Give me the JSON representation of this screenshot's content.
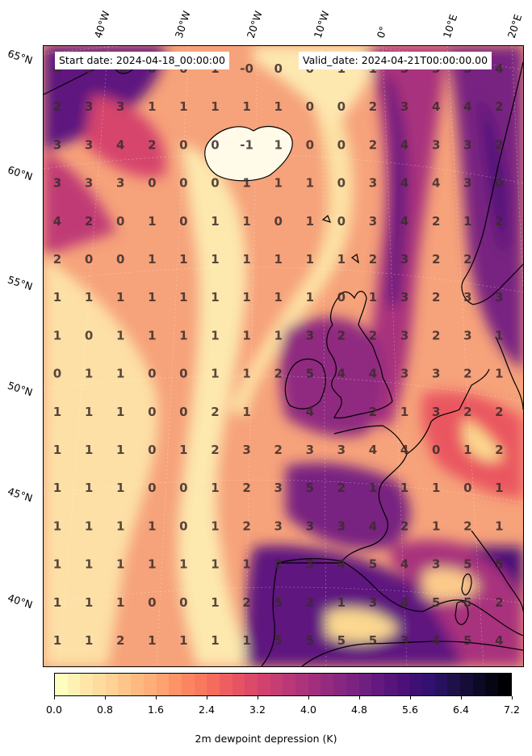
{
  "header": {
    "start_date": "Start date: 2024-04-18_00:00:00",
    "valid_date": "Valid_date: 2024-04-21T00:00:00.00"
  },
  "axes": {
    "lat_labels": [
      "65°N",
      "60°N",
      "55°N",
      "50°N",
      "45°N",
      "40°N"
    ],
    "lon_labels": [
      "40°W",
      "30°W",
      "20°W",
      "10°W",
      "0°",
      "10°E",
      "20°E"
    ]
  },
  "colorbar": {
    "label": "2m dewpoint depression (K)",
    "ticks": [
      "0.0",
      "0.8",
      "1.6",
      "2.4",
      "3.2",
      "4.0",
      "4.8",
      "5.6",
      "6.4",
      "7.2"
    ],
    "range": [
      0,
      7.2
    ],
    "colormap": "magma_r",
    "colors": [
      "#fcfdbf",
      "#fde7a9",
      "#fed395",
      "#febb81",
      "#fea572",
      "#fc8961",
      "#f7705c",
      "#ea5661",
      "#d6456c",
      "#c03a76",
      "#a8327d",
      "#8f2980",
      "#782281",
      "#5f187f",
      "#491078",
      "#30116f",
      "#1d1147",
      "#0b0924",
      "#000004"
    ]
  },
  "chart_data": {
    "type": "heatmap",
    "title": "",
    "variable": "2m dewpoint depression",
    "unit": "K",
    "grid_values": [
      [
        "4",
        "3",
        "-0",
        "0",
        "0",
        "1",
        "-0",
        "0",
        "0",
        "1",
        "1",
        "3",
        "3",
        "5",
        "4"
      ],
      [
        "2",
        "3",
        "3",
        "1",
        "1",
        "1",
        "1",
        "1",
        "0",
        "0",
        "2",
        "3",
        "4",
        "4",
        "2"
      ],
      [
        "3",
        "3",
        "4",
        "2",
        "0",
        "0",
        "-1",
        "1",
        "0",
        "0",
        "2",
        "4",
        "3",
        "3",
        "2"
      ],
      [
        "3",
        "3",
        "3",
        "0",
        "0",
        "0",
        "1",
        "1",
        "1",
        "0",
        "3",
        "4",
        "4",
        "3",
        "0"
      ],
      [
        "4",
        "2",
        "0",
        "1",
        "0",
        "1",
        "1",
        "0",
        "1",
        "0",
        "3",
        "4",
        "2",
        "1",
        "2"
      ],
      [
        "2",
        "0",
        "0",
        "1",
        "1",
        "1",
        "1",
        "1",
        "1",
        "1",
        "2",
        "3",
        "2",
        "2",
        ""
      ],
      [
        "1",
        "1",
        "1",
        "1",
        "1",
        "1",
        "1",
        "1",
        "1",
        "0",
        "1",
        "3",
        "2",
        "3",
        "3"
      ],
      [
        "1",
        "0",
        "1",
        "1",
        "1",
        "1",
        "1",
        "1",
        "3",
        "2",
        "2",
        "3",
        "2",
        "3",
        "1"
      ],
      [
        "0",
        "1",
        "1",
        "0",
        "0",
        "1",
        "1",
        "2",
        "5",
        "4",
        "4",
        "3",
        "3",
        "2",
        "1"
      ],
      [
        "1",
        "1",
        "1",
        "0",
        "0",
        "2",
        "1",
        "",
        "4",
        "",
        "2",
        "1",
        "3",
        "2",
        "2"
      ],
      [
        "1",
        "1",
        "1",
        "0",
        "1",
        "2",
        "3",
        "2",
        "3",
        "3",
        "4",
        "4",
        "0",
        "1",
        "2"
      ],
      [
        "1",
        "1",
        "1",
        "0",
        "0",
        "1",
        "2",
        "3",
        "5",
        "2",
        "1",
        "1",
        "1",
        "0",
        "1"
      ],
      [
        "1",
        "1",
        "1",
        "1",
        "0",
        "1",
        "2",
        "3",
        "3",
        "3",
        "4",
        "2",
        "1",
        "2",
        "1"
      ],
      [
        "1",
        "1",
        "1",
        "1",
        "1",
        "1",
        "1",
        "2",
        "3",
        "4",
        "5",
        "4",
        "3",
        "5",
        "5"
      ],
      [
        "1",
        "1",
        "1",
        "0",
        "0",
        "1",
        "2",
        "5",
        "2",
        "1",
        "3",
        "4",
        "5",
        "5",
        "2"
      ],
      [
        "1",
        "1",
        "2",
        "1",
        "1",
        "1",
        "1",
        "5",
        "5",
        "5",
        "5",
        "3",
        "4",
        "5",
        "4"
      ]
    ]
  }
}
